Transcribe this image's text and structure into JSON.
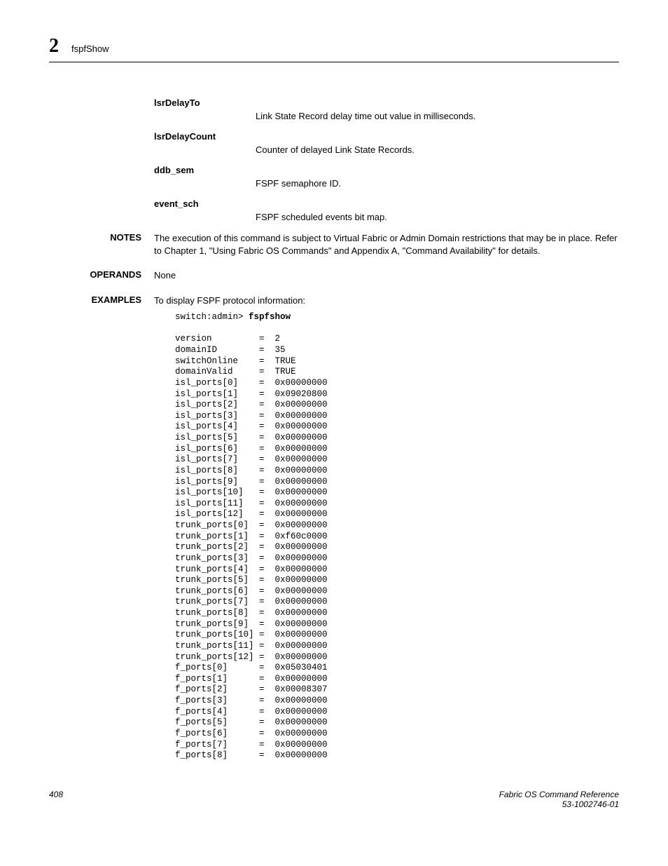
{
  "header": {
    "chapter": "2",
    "title": "fspfShow"
  },
  "fields": [
    {
      "term": "lsrDelayTo",
      "desc": "Link State Record delay time out value in milliseconds."
    },
    {
      "term": "lsrDelayCount",
      "desc": "Counter of delayed Link State Records."
    },
    {
      "term": "ddb_sem",
      "desc": "FSPF semaphore ID."
    },
    {
      "term": "event_sch",
      "desc": "FSPF scheduled events bit map."
    }
  ],
  "notes": {
    "label": "NOTES",
    "text": "The execution of this command is subject to Virtual Fabric or Admin Domain restrictions that may be in place. Refer to Chapter 1, \"Using Fabric OS Commands\" and Appendix A, \"Command Availability\" for details."
  },
  "operands": {
    "label": "OPERANDS",
    "text": "None"
  },
  "examples": {
    "label": "EXAMPLES",
    "intro": "To display FSPF protocol information:",
    "prompt": "switch:admin> ",
    "command": "fspfshow",
    "output": [
      "version         =  2",
      "domainID        =  35",
      "switchOnline    =  TRUE",
      "domainValid     =  TRUE",
      "isl_ports[0]    =  0x00000000",
      "isl_ports[1]    =  0x09020800",
      "isl_ports[2]    =  0x00000000",
      "isl_ports[3]    =  0x00000000",
      "isl_ports[4]    =  0x00000000",
      "isl_ports[5]    =  0x00000000",
      "isl_ports[6]    =  0x00000000",
      "isl_ports[7]    =  0x00000000",
      "isl_ports[8]    =  0x00000000",
      "isl_ports[9]    =  0x00000000",
      "isl_ports[10]   =  0x00000000",
      "isl_ports[11]   =  0x00000000",
      "isl_ports[12]   =  0x00000000",
      "trunk_ports[0]  =  0x00000000",
      "trunk_ports[1]  =  0xf60c0000",
      "trunk_ports[2]  =  0x00000000",
      "trunk_ports[3]  =  0x00000000",
      "trunk_ports[4]  =  0x00000000",
      "trunk_ports[5]  =  0x00000000",
      "trunk_ports[6]  =  0x00000000",
      "trunk_ports[7]  =  0x00000000",
      "trunk_ports[8]  =  0x00000000",
      "trunk_ports[9]  =  0x00000000",
      "trunk_ports[10] =  0x00000000",
      "trunk_ports[11] =  0x00000000",
      "trunk_ports[12] =  0x00000000",
      "f_ports[0]      =  0x05030401",
      "f_ports[1]      =  0x00000000",
      "f_ports[2]      =  0x00008307",
      "f_ports[3]      =  0x00000000",
      "f_ports[4]      =  0x00000000",
      "f_ports[5]      =  0x00000000",
      "f_ports[6]      =  0x00000000",
      "f_ports[7]      =  0x00000000",
      "f_ports[8]      =  0x00000000"
    ]
  },
  "footer": {
    "page": "408",
    "doc_title": "Fabric OS Command Reference",
    "doc_id": "53-1002746-01"
  }
}
